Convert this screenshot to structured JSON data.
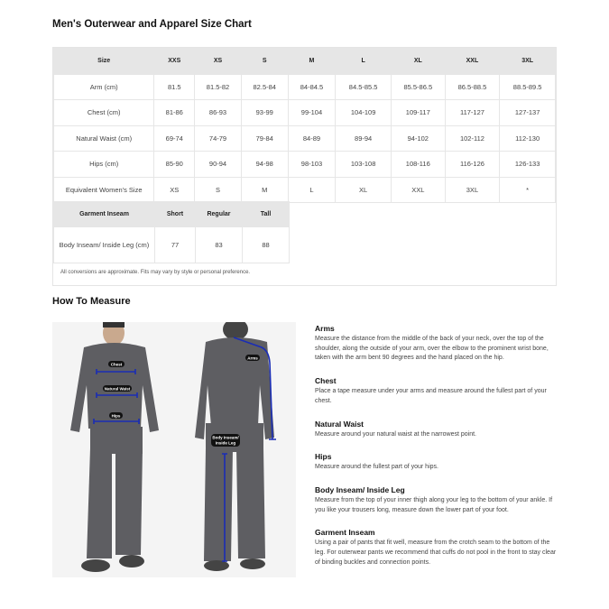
{
  "title": "Men's Outerwear and Apparel Size Chart",
  "size_table": {
    "headers": [
      "Size",
      "XXS",
      "XS",
      "S",
      "M",
      "L",
      "XL",
      "XXL",
      "3XL"
    ],
    "rows": [
      [
        "Arm (cm)",
        "81.5",
        "81.5-82",
        "82.5-84",
        "84-84.5",
        "84.5-85.5",
        "85.5-86.5",
        "86.5-88.5",
        "88.5-89.5"
      ],
      [
        "Chest (cm)",
        "81-86",
        "86-93",
        "93-99",
        "99-104",
        "104-109",
        "109-117",
        "117-127",
        "127-137"
      ],
      [
        "Natural Waist (cm)",
        "69-74",
        "74-79",
        "79-84",
        "84-89",
        "89-94",
        "94-102",
        "102-112",
        "112-130"
      ],
      [
        "Hips (cm)",
        "85-90",
        "90-94",
        "94-98",
        "98-103",
        "103-108",
        "108-116",
        "116-126",
        "126-133"
      ],
      [
        "Equivalent Women's Size",
        "XS",
        "S",
        "M",
        "L",
        "XL",
        "XXL",
        "3XL",
        "*"
      ]
    ]
  },
  "inseam_table": {
    "headers": [
      "Garment Inseam",
      "Short",
      "Regular",
      "Tall"
    ],
    "rows": [
      [
        "Body Inseam/ Inside Leg (cm)",
        "77",
        "83",
        "88"
      ]
    ]
  },
  "footnote": "All conversions are approximate. Fits may vary by style or personal preference.",
  "how_to_measure": {
    "title": "How To Measure",
    "photo_labels": {
      "chest": "Chest",
      "waist": "Natural Waist",
      "hips": "Hips",
      "arms": "Arms",
      "inseam_1": "Body Inseam/",
      "inseam_2": "Inside Leg"
    },
    "items": [
      {
        "heading": "Arms",
        "text": "Measure the distance from the middle of the back of your neck, over the top of the shoulder, along the outside of your arm, over the elbow to the prominent wrist bone, taken with the arm bent 90 degrees and the hand placed on the hip."
      },
      {
        "heading": "Chest",
        "text": "Place a tape measure under your arms and measure around the fullest part of your chest."
      },
      {
        "heading": "Natural Waist",
        "text": "Measure around your natural waist at the narrowest point."
      },
      {
        "heading": "Hips",
        "text": "Measure around the fullest part of your hips."
      },
      {
        "heading": "Body Inseam/ Inside Leg",
        "text": "Measure from the top of your inner thigh along your leg to the bottom of your ankle. If you like your trousers long, measure down the lower part of your foot."
      },
      {
        "heading": "Garment Inseam",
        "text": "Using a pair of pants that fit well, measure from the crotch seam to the bottom of the leg. For outerwear pants we recommend that cuffs do not pool in the front to stay clear of binding buckles and connection points."
      }
    ]
  },
  "colors": {
    "header_bg": "#e6e6e6",
    "measure_line": "#1a2db5",
    "garment": "#5e5e62"
  }
}
